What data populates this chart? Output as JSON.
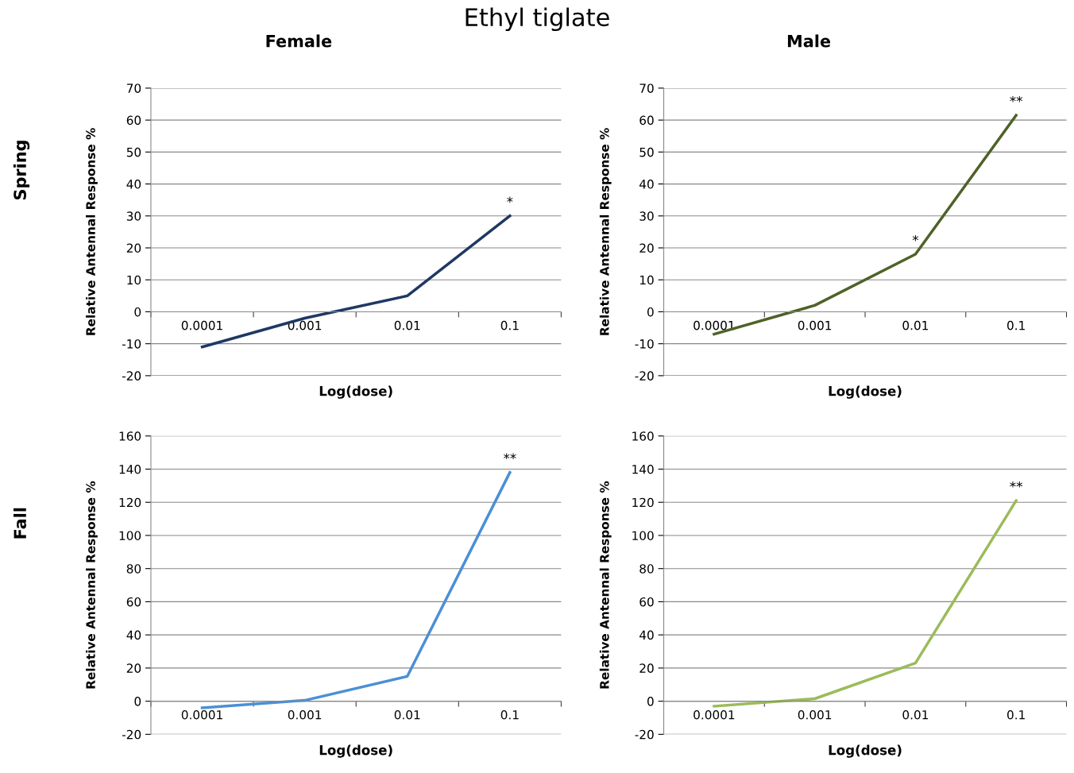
{
  "chart_data": [
    {
      "type": "line",
      "title": "Ethyl tiglate",
      "subtitle": "Female",
      "xlabel": "Log(dose)",
      "ylabel": "Relative Antennal Response %",
      "categories": [
        "0.0001",
        "0.001",
        "0.01",
        "0.1"
      ],
      "series": [
        {
          "color": "#1f3864",
          "values": [
            -11,
            -2,
            5,
            30
          ]
        }
      ],
      "ylim": [
        -20,
        70
      ],
      "yticks": [
        -20,
        -10,
        0,
        10,
        20,
        30,
        40,
        50,
        60,
        70
      ],
      "grid": "y",
      "marker": "none",
      "line_style": "solid",
      "annotations": [
        "Spring",
        {
          "text": "*",
          "x": "0.1",
          "y": 30
        }
      ]
    },
    {
      "type": "line",
      "subtitle": "Male",
      "xlabel": "Log(dose)",
      "ylabel": "Relative Antennal Response %",
      "categories": [
        "0.0001",
        "0.001",
        "0.01",
        "0.1"
      ],
      "series": [
        {
          "color": "#4f6228",
          "values": [
            -7,
            2,
            18,
            61.5
          ]
        }
      ],
      "ylim": [
        -20,
        70
      ],
      "yticks": [
        -20,
        -10,
        0,
        10,
        20,
        30,
        40,
        50,
        60,
        70
      ],
      "grid": "y",
      "marker": "none",
      "line_style": "solid",
      "annotations": [
        {
          "text": "*",
          "x": "0.01",
          "y": 18
        },
        {
          "text": "**",
          "x": "0.1",
          "y": 61.5
        }
      ]
    },
    {
      "type": "line",
      "xlabel": "Log(dose)",
      "ylabel": "Relative Antennal Response %",
      "categories": [
        "0.0001",
        "0.001",
        "0.01",
        "0.1"
      ],
      "series": [
        {
          "color": "#4a8fd6",
          "values": [
            -4,
            0.5,
            15,
            138
          ]
        }
      ],
      "ylim": [
        -20,
        160
      ],
      "yticks": [
        -20,
        0,
        20,
        40,
        60,
        80,
        100,
        120,
        140,
        160
      ],
      "grid": "y",
      "marker": "none",
      "line_style": "solid",
      "annotations": [
        "Fall",
        {
          "text": "**",
          "x": "0.1",
          "y": 138
        }
      ]
    },
    {
      "type": "line",
      "xlabel": "Log(dose)",
      "ylabel": "Relative Antennal Response %",
      "categories": [
        "0.0001",
        "0.001",
        "0.01",
        "0.1"
      ],
      "series": [
        {
          "color": "#9bbb59",
          "values": [
            -3,
            1.5,
            23,
            121
          ]
        }
      ],
      "ylim": [
        -20,
        160
      ],
      "yticks": [
        -20,
        0,
        20,
        40,
        60,
        80,
        100,
        120,
        140,
        160
      ],
      "grid": "y",
      "marker": "none",
      "line_style": "solid",
      "annotations": [
        {
          "text": "**",
          "x": "0.1",
          "y": 121
        }
      ]
    }
  ]
}
